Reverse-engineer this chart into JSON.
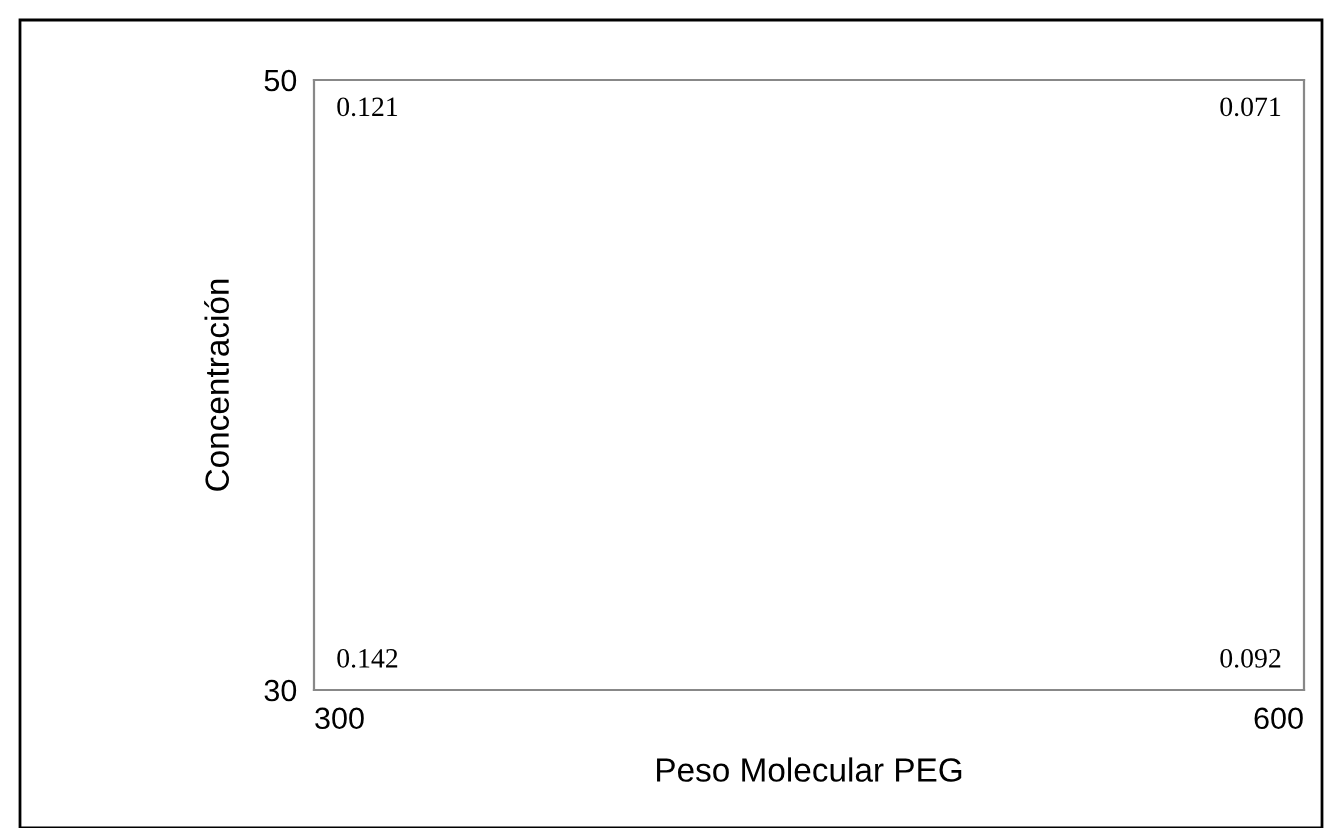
{
  "chart_data": {
    "type": "heatmap",
    "xlabel": "Peso Molecular PEG",
    "ylabel": "Concentración",
    "categories": [
      "300",
      "600"
    ],
    "y_categories": [
      "50",
      "30"
    ],
    "cells": [
      [
        0.121,
        0.071
      ],
      [
        0.142,
        0.092
      ]
    ],
    "data_labels": true
  }
}
